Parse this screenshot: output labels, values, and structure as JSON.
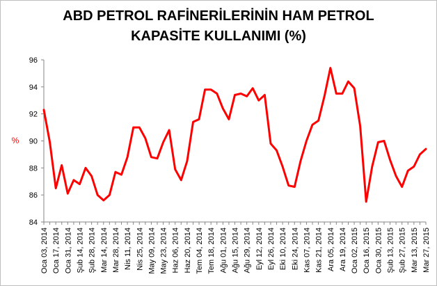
{
  "chart_data": {
    "type": "line",
    "title_lines": [
      "ABD PETROL RAFİNERİLERİNİN HAM PETROL",
      "KAPASİTE KULLANIMI (%)"
    ],
    "ylabel": "%",
    "xlabel": "",
    "ylim": [
      84,
      96
    ],
    "yticks": [
      "84",
      "86",
      "88",
      "90",
      "92",
      "94",
      "96"
    ],
    "grid": false,
    "legend": "none",
    "line_color": "#ff0000",
    "x_tick_labels": [
      "Oca 03, 2014",
      "Oca 17, 2014",
      "Oca 31, 2014",
      "Şub 14, 2014",
      "Şub 28, 2014",
      "Mar 14, 2014",
      "Mar 28, 2014",
      "Nis 11, 2014",
      "Nis 25, 2014",
      "May 09, 2014",
      "May 23, 2014",
      "Haz 06, 2014",
      "Haz 20, 2014",
      "Tem 04, 2014",
      "Tem 18, 2014",
      "Ağu 01, 2014",
      "Ağu 15, 2014",
      "Ağu 29, 2014",
      "Eyl 12, 2014",
      "Eyl 26, 2014",
      "Eki 10, 2014",
      "Eki 24, 2014",
      "Kas 07, 2014",
      "Kas 21, 2014",
      "Ara 05, 2014",
      "Ara 19, 2014",
      "Oca 02, 2015",
      "Oca 16, 2015",
      "Oca 30, 2015",
      "Şub 13, 2015",
      "Şub 27, 2015",
      "Mar 13, 2015",
      "Mar 27, 2015"
    ],
    "x": [
      "2014-01-03",
      "2014-01-10",
      "2014-01-17",
      "2014-01-24",
      "2014-01-31",
      "2014-02-07",
      "2014-02-14",
      "2014-02-21",
      "2014-02-28",
      "2014-03-07",
      "2014-03-14",
      "2014-03-21",
      "2014-03-28",
      "2014-04-04",
      "2014-04-11",
      "2014-04-18",
      "2014-04-25",
      "2014-05-02",
      "2014-05-09",
      "2014-05-16",
      "2014-05-23",
      "2014-05-30",
      "2014-06-06",
      "2014-06-13",
      "2014-06-20",
      "2014-06-27",
      "2014-07-04",
      "2014-07-11",
      "2014-07-18",
      "2014-07-25",
      "2014-08-01",
      "2014-08-08",
      "2014-08-15",
      "2014-08-22",
      "2014-08-29",
      "2014-09-05",
      "2014-09-12",
      "2014-09-19",
      "2014-09-26",
      "2014-10-03",
      "2014-10-10",
      "2014-10-17",
      "2014-10-24",
      "2014-10-31",
      "2014-11-07",
      "2014-11-14",
      "2014-11-21",
      "2014-11-28",
      "2014-12-05",
      "2014-12-12",
      "2014-12-19",
      "2014-12-26",
      "2015-01-02",
      "2015-01-09",
      "2015-01-16",
      "2015-01-23",
      "2015-01-30",
      "2015-02-06",
      "2015-02-13",
      "2015-02-20",
      "2015-02-27",
      "2015-03-06",
      "2015-03-13",
      "2015-03-20",
      "2015-03-27"
    ],
    "series": [
      {
        "values": [
          92.3,
          89.9,
          86.5,
          88.2,
          86.1,
          87.1,
          86.8,
          88.0,
          87.4,
          86.0,
          85.6,
          86.0,
          87.7,
          87.5,
          88.8,
          91.0,
          91.0,
          90.2,
          88.8,
          88.7,
          89.9,
          90.8,
          87.9,
          87.1,
          88.5,
          91.4,
          91.6,
          93.8,
          93.8,
          93.5,
          92.4,
          91.6,
          93.4,
          93.5,
          93.3,
          93.9,
          93.0,
          93.4,
          89.8,
          89.3,
          88.1,
          86.7,
          86.6,
          88.5,
          90.0,
          91.2,
          91.5,
          93.3,
          95.4,
          93.5,
          93.5,
          94.4,
          93.9,
          91.1,
          85.5,
          88.1,
          89.9,
          90.0,
          88.6,
          87.4,
          86.6,
          87.8,
          88.1,
          89.0,
          89.4
        ]
      }
    ]
  }
}
